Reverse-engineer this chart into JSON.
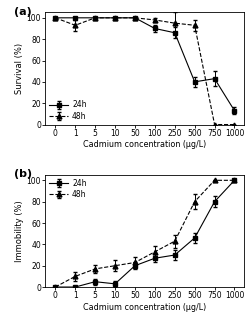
{
  "x_labels": [
    "0",
    "1",
    "5",
    "10",
    "50",
    "100",
    "250",
    "500",
    "750",
    "1000"
  ],
  "n_points": 10,
  "survival_24h": [
    100,
    100,
    100,
    100,
    100,
    90,
    86,
    40,
    43,
    13
  ],
  "survival_48h": [
    100,
    93,
    100,
    100,
    100,
    98,
    95,
    93,
    0,
    0
  ],
  "survival_24h_err": [
    0,
    0,
    0,
    0,
    0,
    3,
    5,
    5,
    7,
    3
  ],
  "survival_48h_err": [
    0,
    5,
    0,
    0,
    0,
    2,
    10,
    5,
    0,
    0
  ],
  "immob_24h": [
    0,
    0,
    5,
    3,
    20,
    27,
    30,
    46,
    80,
    100
  ],
  "immob_48h": [
    0,
    10,
    17,
    20,
    23,
    33,
    43,
    80,
    100,
    100
  ],
  "immob_24h_err": [
    0,
    0,
    3,
    3,
    3,
    4,
    5,
    5,
    5,
    0
  ],
  "immob_48h_err": [
    0,
    4,
    4,
    5,
    5,
    5,
    6,
    7,
    0,
    0
  ],
  "xlabel": "Cadmium concentration (μg/L)",
  "ylabel_a": "Survival (%)",
  "ylabel_b": "Immobility (%)",
  "label_24h": "24h",
  "label_48h": "48h",
  "panel_a": "(a)",
  "panel_b": "(b)",
  "ylim": [
    0,
    105
  ],
  "yticks": [
    0,
    20,
    40,
    60,
    80,
    100
  ],
  "bg_color": "#ffffff",
  "plot_bg": "#ffffff"
}
